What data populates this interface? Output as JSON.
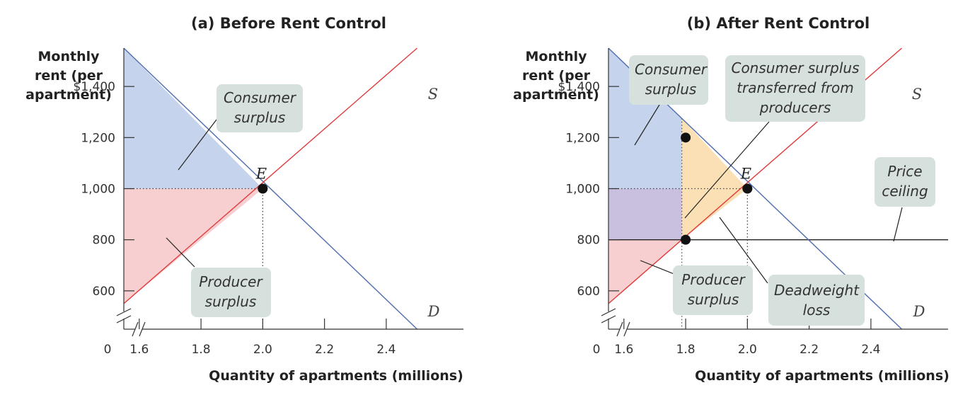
{
  "chart_data": [
    {
      "type": "line",
      "title": "(a) Before Rent Control",
      "ylabel": "Monthly\nrent (per\napartment)",
      "xlabel": "Quantity of apartments (millions)",
      "x_ticks": [
        "1.6",
        "1.8",
        "2.0",
        "2.2",
        "2.4"
      ],
      "x_tick_values": [
        1.6,
        1.8,
        2.0,
        2.2,
        2.4
      ],
      "y_ticks": [
        "$1,400",
        "1,200",
        "1,000",
        "800",
        "600"
      ],
      "y_tick_values": [
        1400,
        1200,
        1000,
        800,
        600
      ],
      "origin_label": "0",
      "xlim": [
        1.55,
        2.65
      ],
      "ylim": [
        450,
        1550
      ],
      "series": [
        {
          "name": "D",
          "x": [
            1.55,
            2.5
          ],
          "y": [
            1550,
            450
          ],
          "color": "#4f6fb0"
        },
        {
          "name": "S",
          "x": [
            1.55,
            2.5
          ],
          "y": [
            550,
            1550
          ],
          "color": "#e03a3a"
        }
      ],
      "points": [
        {
          "label": "E",
          "x": 2.0,
          "y": 1000
        }
      ],
      "regions": [
        {
          "label": "Consumer\nsurplus",
          "color": "#c5d3ec"
        },
        {
          "label": "Producer\nsurplus",
          "color": "#f8cfd0"
        }
      ],
      "legend": "none",
      "grid": false
    },
    {
      "type": "line",
      "title": "(b) After Rent Control",
      "ylabel": "Monthly\nrent (per\napartment)",
      "xlabel": "Quantity of apartments (millions)",
      "x_ticks": [
        "1.6",
        "1.8",
        "2.0",
        "2.2",
        "2.4"
      ],
      "x_tick_values": [
        1.6,
        1.8,
        2.0,
        2.2,
        2.4
      ],
      "y_ticks": [
        "$1,400",
        "1,200",
        "1,000",
        "800",
        "600"
      ],
      "y_tick_values": [
        1400,
        1200,
        1000,
        800,
        600
      ],
      "origin_label": "0",
      "xlim": [
        1.55,
        2.65
      ],
      "ylim": [
        450,
        1550
      ],
      "series": [
        {
          "name": "D",
          "x": [
            1.55,
            2.5
          ],
          "y": [
            1550,
            450
          ],
          "color": "#4f6fb0"
        },
        {
          "name": "S",
          "x": [
            1.55,
            2.5
          ],
          "y": [
            550,
            1550
          ],
          "color": "#e03a3a"
        }
      ],
      "price_ceiling": 800,
      "points": [
        {
          "label": "",
          "x": 1.8,
          "y": 1200
        },
        {
          "label": "E",
          "x": 2.0,
          "y": 1000
        },
        {
          "label": "",
          "x": 1.8,
          "y": 800
        }
      ],
      "regions": [
        {
          "label": "Consumer\nsurplus",
          "color": "#c5d3ec"
        },
        {
          "label": "Consumer surplus\ntransferred from\nproducers",
          "color": "#c9c0e0"
        },
        {
          "label": "Producer\nsurplus",
          "color": "#f8cfd0"
        },
        {
          "label": "Deadweight\nloss",
          "color": "#fbe0b5"
        },
        {
          "label": "Price\nceiling",
          "color": "#000000"
        }
      ],
      "legend": "none",
      "grid": false
    }
  ]
}
